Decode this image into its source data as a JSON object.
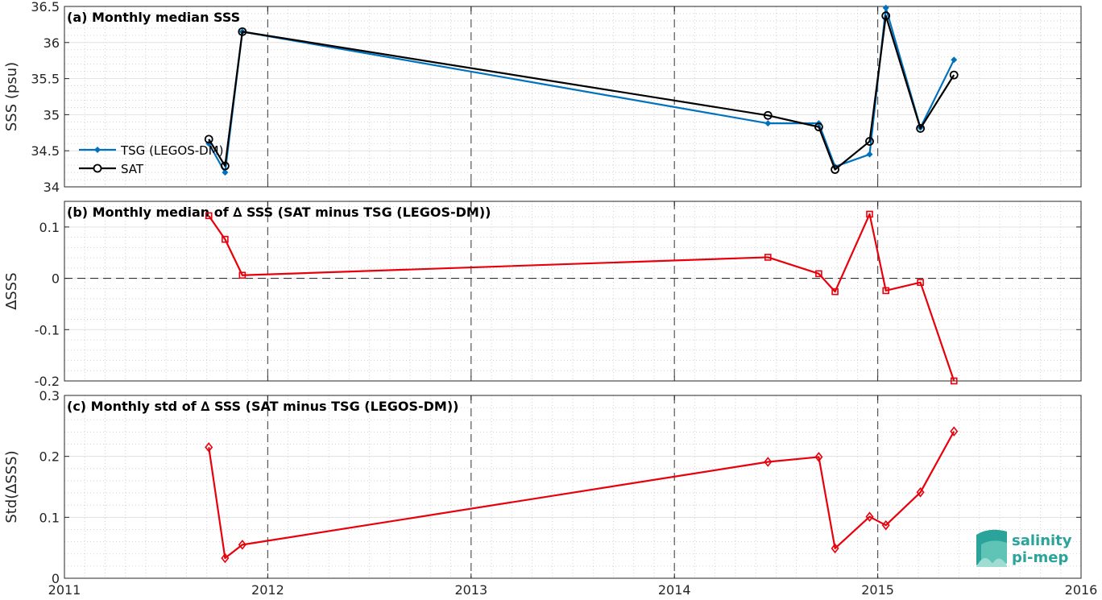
{
  "colors": {
    "tsg": "#0072BD",
    "sat": "#000000",
    "delta": "#e8000b",
    "logo": "#2aa39a"
  },
  "logo": {
    "line1": "salinity",
    "line2": "pi-mep"
  },
  "chart_data": [
    {
      "type": "line",
      "title": "(a) Monthly median SSS",
      "ylabel": "SSS (psu)",
      "xlim": [
        2011,
        2016
      ],
      "ylim": [
        34,
        36.5
      ],
      "yticks": [
        34,
        34.5,
        35,
        35.5,
        36,
        36.5
      ],
      "ytick_labels": [
        "34",
        "34.5",
        "35",
        "35.5",
        "36",
        "36.5"
      ],
      "legend_position": "lower-left",
      "series": [
        {
          "name": "TSG (LEGOS-DM)",
          "marker": "dot",
          "x": [
            2011.71,
            2011.79,
            2011.875,
            2014.46,
            2014.71,
            2014.79,
            2014.96,
            2015.04,
            2015.21,
            2015.375
          ],
          "y": [
            34.6,
            34.2,
            36.15,
            34.88,
            34.88,
            34.28,
            34.45,
            36.48,
            34.82,
            35.76
          ]
        },
        {
          "name": "SAT",
          "marker": "circle",
          "x": [
            2011.71,
            2011.79,
            2011.875,
            2014.46,
            2014.71,
            2014.79,
            2014.96,
            2015.04,
            2015.21,
            2015.375
          ],
          "y": [
            34.66,
            34.29,
            36.15,
            34.99,
            34.83,
            34.24,
            34.63,
            36.37,
            34.81,
            35.55
          ]
        }
      ]
    },
    {
      "type": "line",
      "title": "(b) Monthly median of ∆ SSS (SAT minus TSG (LEGOS-DM))",
      "ylabel": "∆SSS",
      "xlim": [
        2011,
        2016
      ],
      "ylim": [
        -0.2,
        0.15
      ],
      "yticks": [
        -0.2,
        -0.1,
        0,
        0.1
      ],
      "ytick_labels": [
        "-0.2",
        "-0.1",
        "0",
        "0.1"
      ],
      "zero_line": true,
      "series": [
        {
          "marker": "square",
          "x": [
            2011.71,
            2011.79,
            2011.875,
            2014.46,
            2014.71,
            2014.79,
            2014.96,
            2015.04,
            2015.21,
            2015.375
          ],
          "y": [
            0.122,
            0.076,
            0.006,
            0.041,
            0.009,
            -0.026,
            0.125,
            -0.024,
            -0.008,
            -0.2
          ]
        }
      ]
    },
    {
      "type": "line",
      "title": "(c) Monthly std of ∆ SSS (SAT minus TSG (LEGOS-DM))",
      "ylabel": "Std(∆SSS)",
      "xlim": [
        2011,
        2016
      ],
      "ylim": [
        0,
        0.3
      ],
      "yticks": [
        0,
        0.1,
        0.2,
        0.3
      ],
      "ytick_labels": [
        "0",
        "0.1",
        "0.2",
        "0.3"
      ],
      "xticks": [
        2011,
        2012,
        2013,
        2014,
        2015,
        2016
      ],
      "xtick_labels": [
        "2011",
        "2012",
        "2013",
        "2014",
        "2015",
        "2016"
      ],
      "series": [
        {
          "marker": "diamond",
          "x": [
            2011.71,
            2011.79,
            2011.875,
            2014.46,
            2014.71,
            2014.79,
            2014.96,
            2015.04,
            2015.21,
            2015.375
          ],
          "y": [
            0.215,
            0.033,
            0.055,
            0.191,
            0.199,
            0.049,
            0.101,
            0.087,
            0.141,
            0.241
          ]
        }
      ]
    }
  ]
}
